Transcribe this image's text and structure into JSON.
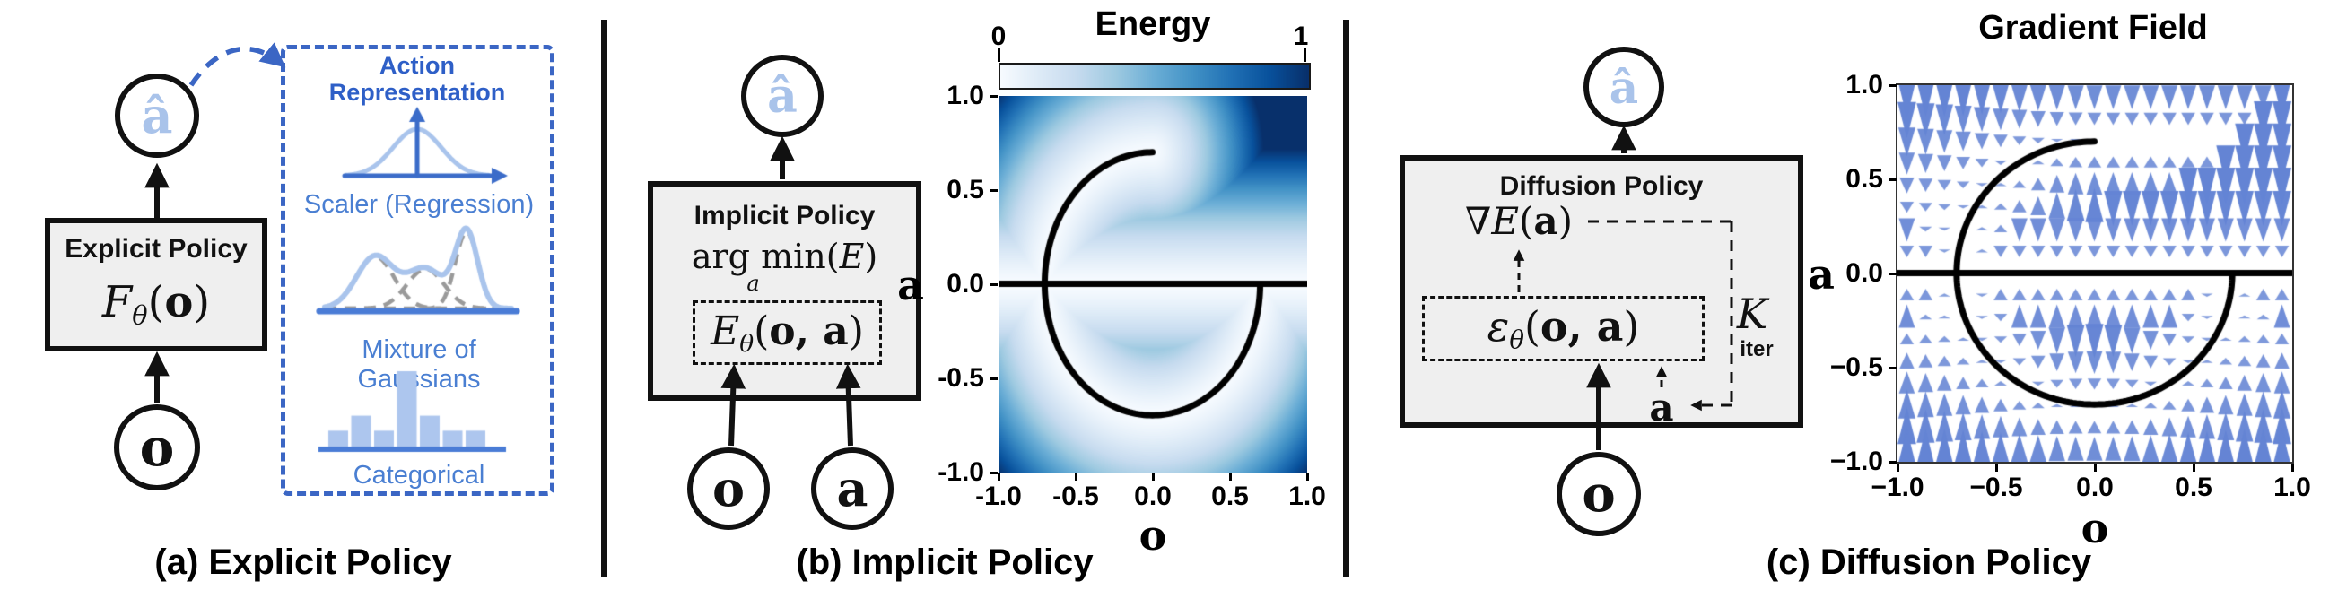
{
  "colors": {
    "accent_blue": "#3b66c4",
    "label_blue": "#4a7fd2",
    "light_blue": "#a9c4ec",
    "ahat_blue": "#a9c3ea",
    "bar_blue": "#adc6ee",
    "baseline_blue": "#4a7cd6",
    "gray_dash": "#9a9a9a",
    "quiver_blue": "#6484d4",
    "box_fill": "#efefef"
  },
  "panels": {
    "a": {
      "caption": "(a) Explicit Policy",
      "a_hat": "â",
      "o": "o",
      "policy_box": {
        "title": "Explicit Policy",
        "math": {
          "name": "F",
          "sub": "θ",
          "open": "(",
          "args": "o",
          "close": ")"
        }
      },
      "action_repr": {
        "title_line1": "Action",
        "title_line2": "Representation",
        "scaler_label": "Scaler (Regression)",
        "mixture_label": "Mixture of Gaussians",
        "categorical_label": "Categorical"
      }
    },
    "b": {
      "caption": "(b) Implicit Policy",
      "a_hat": "â",
      "o": "o",
      "a": "a",
      "policy_box": {
        "title": "Implicit Policy",
        "argmin": {
          "prefix": "arg min",
          "sub": "a",
          "open": "(",
          "E": "E",
          "close": ")"
        },
        "energy_fn": {
          "name": "E",
          "sub": "θ",
          "open": "(",
          "args": "o, a",
          "close": ")"
        }
      }
    },
    "c": {
      "caption": "(c) Diffusion Policy",
      "a_hat": "â",
      "o": "o",
      "policy_box": {
        "title": "Diffusion Policy",
        "grad": {
          "nabla": "∇",
          "name": "E",
          "open": "(",
          "arg": "a",
          "close": ")"
        },
        "eps": {
          "name": "ε",
          "sub": "θ",
          "open": "(",
          "args": "o, a",
          "close": ")"
        },
        "K": "K",
        "iter": "iter",
        "a_node": "a"
      }
    }
  },
  "chart_data": [
    {
      "id": "scaler_gaussian",
      "type": "line",
      "panel": "a",
      "description": "single Gaussian over action axis",
      "gaussian": {
        "mu": 0.5,
        "sigma": 0.17,
        "height": 1.0
      },
      "curve_color": "#a9c4ec",
      "axis_color": "#3b6cc9"
    },
    {
      "id": "mixture_of_gaussians",
      "type": "line",
      "panel": "a",
      "description": "sum of three Gaussian components (solid) with dashed components",
      "components": [
        {
          "mu": 0.27,
          "sigma": 0.1,
          "height": 0.66
        },
        {
          "mu": 0.54,
          "sigma": 0.1,
          "height": 0.5
        },
        {
          "mu": 0.76,
          "sigma": 0.06,
          "height": 0.97
        }
      ],
      "envelope_color": "#a9c4ec",
      "component_color": "#9a9a9a",
      "baseline_color": "#4a7cd6"
    },
    {
      "id": "categorical",
      "type": "bar",
      "panel": "a",
      "values": [
        0.21,
        0.41,
        0.21,
        1.0,
        0.41,
        0.21,
        0.21
      ],
      "bar_color": "#adc6ee",
      "baseline_color": "#4a7cd6"
    },
    {
      "id": "energy",
      "type": "heatmap",
      "panel": "b",
      "title": "Energy",
      "xlabel": "o",
      "ylabel": "a",
      "xlim": [
        -1,
        1
      ],
      "ylim": [
        -1,
        1
      ],
      "xticks": [
        "-1.0",
        "-0.5",
        "0.0",
        "0.5",
        "1.0"
      ],
      "yticks": [
        "1.0",
        "0.5",
        "0.0",
        "-0.5",
        "-1.0"
      ],
      "colorbar": {
        "min_label": "0",
        "max_label": "1",
        "colormap": "Blues"
      },
      "energy_model": {
        "rule": "normalized distance to demonstration set",
        "line_a": 0,
        "circle_radius": 0.7,
        "arc_deg": [
          90,
          360
        ],
        "norm": 0.72,
        "gamma": 1.35
      },
      "overlay_curve_color": "#000000"
    },
    {
      "id": "gradient_field",
      "type": "quiver",
      "panel": "c",
      "title": "Gradient Field",
      "xlabel": "o",
      "ylabel": "a",
      "xlim": [
        -1,
        1
      ],
      "ylim": [
        -1,
        1
      ],
      "xticks": [
        "−1.0",
        "−0.5",
        "0.0",
        "0.5",
        "1.0"
      ],
      "yticks": [
        "1.0",
        "0.5",
        "0.0",
        "−0.5",
        "−1.0"
      ],
      "grid": {
        "cols": 21,
        "rows": 17
      },
      "arrow_color": "#6484d4",
      "field_model": {
        "rule": "vertical component toward nearest demonstration point",
        "line_a": 0,
        "circle_radius": 0.7,
        "arc_deg": [
          90,
          360
        ],
        "clamp": 0.38
      },
      "overlay_curve_color": "#000000"
    }
  ]
}
